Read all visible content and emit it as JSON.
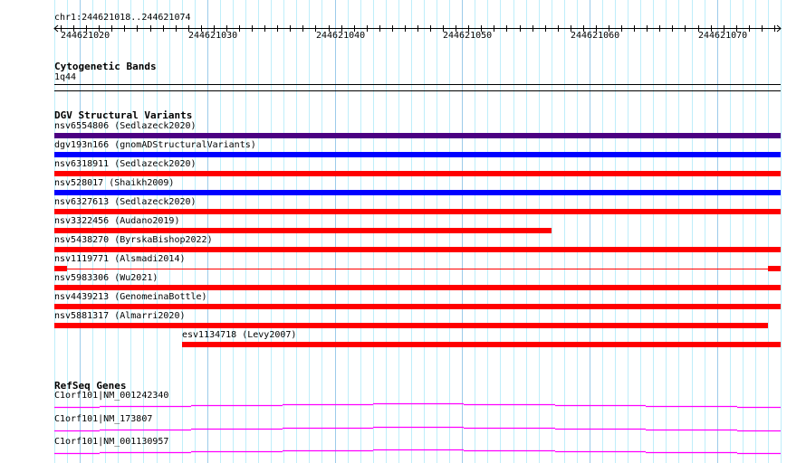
{
  "ruler": {
    "position_label": "chr1:244621018..244621074",
    "start": 244621018,
    "end": 244621075,
    "tick_labels": [
      "244621020",
      "244621030",
      "244621040",
      "244621050",
      "244621060",
      "244621070"
    ]
  },
  "cytoband": {
    "title": "Cytogenetic Bands",
    "band": "1q44"
  },
  "dgv": {
    "title": "DGV Structural Variants",
    "colors": {
      "purple": "#4b0082",
      "blue": "#0000ff",
      "red": "#ff0000"
    },
    "variants": [
      {
        "label": "nsv6554806 (Sedlazeck2020)",
        "color": "#4b0082",
        "start": 244621018,
        "end": 244621075
      },
      {
        "label": "dgv193n166 (gnomADStructuralVariants)",
        "color": "#0000ff",
        "start": 244621018,
        "end": 244621075
      },
      {
        "label": "nsv6318911 (Sedlazeck2020)",
        "color": "#ff0000",
        "start": 244621018,
        "end": 244621075
      },
      {
        "label": "nsv528017 (Shaikh2009)",
        "color": "#0000ff",
        "start": 244621018,
        "end": 244621075
      },
      {
        "label": "nsv6327613 (Sedlazeck2020)",
        "color": "#ff0000",
        "start": 244621018,
        "end": 244621075
      },
      {
        "label": "nsv3322456 (Audano2019)",
        "color": "#ff0000",
        "start": 244621018,
        "end": 244621057
      },
      {
        "label": "nsv5438270 (ByrskaBishop2022)",
        "color": "#ff0000",
        "start": 244621018,
        "end": 244621075
      },
      {
        "label": "nsv1119771 (Alsmadi2014)",
        "color": "#ff0000",
        "start": 244621018,
        "end": 244621075,
        "blocks": [
          [
            244621018,
            244621019
          ],
          [
            244621074,
            244621075
          ]
        ]
      },
      {
        "label": "nsv5983306 (Wu2021)",
        "color": "#ff0000",
        "start": 244621018,
        "end": 244621075
      },
      {
        "label": "nsv4439213 (GenomeinaBottle)",
        "color": "#ff0000",
        "start": 244621018,
        "end": 244621075
      },
      {
        "label": "nsv5881317 (Almarri2020)",
        "color": "#ff0000",
        "start": 244621018,
        "end": 244621074
      },
      {
        "label": "esv1134718 (Levy2007)",
        "color": "#ff0000",
        "start": 244621028,
        "end": 244621075
      }
    ]
  },
  "refseq": {
    "title": "RefSeq Genes",
    "color": "#ff00ff",
    "genes": [
      {
        "label": "C1orf101|NM_001242340"
      },
      {
        "label": "C1orf101|NM_173807"
      },
      {
        "label": "C1orf101|NM_001130957"
      }
    ]
  }
}
